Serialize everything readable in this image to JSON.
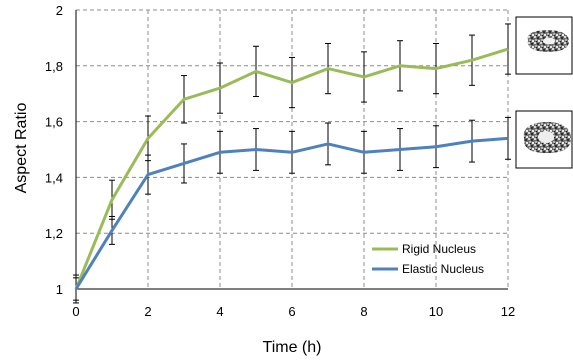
{
  "chart_data": {
    "type": "line",
    "xlabel": "Time (h)",
    "ylabel": "Aspect Ratio",
    "xlim": [
      0,
      12
    ],
    "ylim": [
      1,
      2
    ],
    "x_ticks": [
      "0",
      "2",
      "4",
      "6",
      "8",
      "10",
      "12"
    ],
    "y_ticks": [
      "1",
      "1,2",
      "1,4",
      "1,6",
      "1,8",
      "2"
    ],
    "grid": true,
    "legend_position": "bottom-right",
    "x": [
      0,
      1,
      2,
      3,
      4,
      5,
      6,
      7,
      8,
      9,
      10,
      11,
      12
    ],
    "series": [
      {
        "name": "Rigid Nucleus",
        "color": "#9bbb59",
        "values": [
          1.0,
          1.32,
          1.54,
          1.68,
          1.72,
          1.78,
          1.74,
          1.79,
          1.76,
          1.8,
          1.79,
          1.82,
          1.86
        ],
        "error": [
          0.05,
          0.07,
          0.08,
          0.085,
          0.09,
          0.09,
          0.09,
          0.09,
          0.09,
          0.09,
          0.09,
          0.09,
          0.09
        ]
      },
      {
        "name": "Elastic Nucleus",
        "color": "#4f81bd",
        "values": [
          1.0,
          1.21,
          1.41,
          1.45,
          1.49,
          1.5,
          1.49,
          1.52,
          1.49,
          1.5,
          1.51,
          1.53,
          1.54
        ],
        "error": [
          0.04,
          0.05,
          0.07,
          0.07,
          0.075,
          0.075,
          0.075,
          0.075,
          0.075,
          0.075,
          0.075,
          0.075,
          0.075
        ]
      }
    ],
    "insets": [
      {
        "name": "rigid-nucleus-thumbnail"
      },
      {
        "name": "elastic-nucleus-thumbnail"
      }
    ]
  }
}
